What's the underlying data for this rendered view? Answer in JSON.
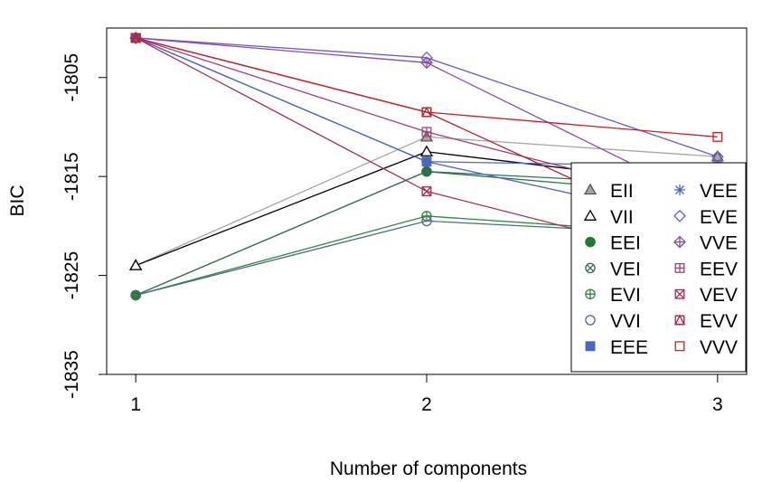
{
  "chart_data": {
    "type": "line",
    "xlabel": "Number of components",
    "ylabel": "BIC",
    "x": [
      1,
      2,
      3
    ],
    "xticks": [
      1,
      2,
      3
    ],
    "yticks": [
      -1805,
      -1815,
      -1825,
      -1835
    ],
    "ylim": [
      -1835,
      -1800
    ],
    "xlim": [
      0.9,
      3.1
    ],
    "legend_position": "right",
    "series": [
      {
        "name": "EII",
        "color": "#a6a6a6",
        "marker": "triangle-filled",
        "values": [
          -1824,
          -1811,
          -1813
        ]
      },
      {
        "name": "VII",
        "color": "#000000",
        "marker": "triangle-open",
        "values": [
          -1824,
          -1812.5,
          -1816
        ]
      },
      {
        "name": "EEI",
        "color": "#1f7a2e",
        "marker": "circle-filled",
        "values": [
          -1827,
          -1814.5,
          -1817
        ]
      },
      {
        "name": "VEI",
        "color": "#3b6b5a",
        "marker": "circle-x",
        "values": [
          -1827,
          -1814.5,
          -1816
        ]
      },
      {
        "name": "EVI",
        "color": "#2f8a3c",
        "marker": "circle-plus",
        "values": [
          -1827,
          -1819,
          -1821
        ]
      },
      {
        "name": "VVI",
        "color": "#4a6b8a",
        "marker": "circle-open",
        "values": [
          -1827,
          -1819.5,
          -1821
        ]
      },
      {
        "name": "EEE",
        "color": "#4a66c4",
        "marker": "square-filled",
        "values": [
          -1801,
          -1813.5,
          -1814
        ]
      },
      {
        "name": "VEE",
        "color": "#4a66c4",
        "marker": "asterisk",
        "values": [
          -1801,
          -1813.5,
          -1820
        ]
      },
      {
        "name": "EVE",
        "color": "#6a5acd",
        "marker": "diamond-open",
        "values": [
          -1801,
          -1803,
          -1813
        ]
      },
      {
        "name": "VVE",
        "color": "#8a4aa6",
        "marker": "diamond-plus",
        "values": [
          -1801,
          -1803.5,
          -1818
        ]
      },
      {
        "name": "EEV",
        "color": "#a0407a",
        "marker": "square-plus",
        "values": [
          -1801,
          -1810.5,
          -1818
        ]
      },
      {
        "name": "VEV",
        "color": "#a03050",
        "marker": "square-x",
        "values": [
          -1801,
          -1816.5,
          -1824
        ]
      },
      {
        "name": "EVV",
        "color": "#b01f2a",
        "marker": "square-triangle",
        "values": [
          -1801,
          -1808.5,
          -1822
        ]
      },
      {
        "name": "VVV",
        "color": "#c0202a",
        "marker": "square-open",
        "values": [
          -1801,
          -1808.5,
          -1811
        ]
      }
    ]
  }
}
